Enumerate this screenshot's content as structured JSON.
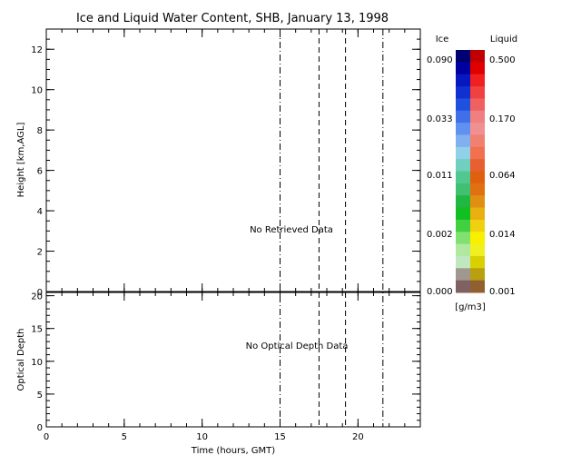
{
  "chart_data": {
    "type": "heatmap",
    "title": "Ice and Liquid Water Content, SHB, January 13, 1998",
    "xlabel": "Time (hours, GMT)",
    "xlim": [
      0,
      24
    ],
    "x_ticks": [
      0,
      5,
      10,
      15,
      20
    ],
    "x_minor_step": 1,
    "top_panel": {
      "ylabel": "Height [km,AGL]",
      "ylim": [
        0,
        13
      ],
      "y_ticks": [
        0,
        2,
        4,
        6,
        8,
        10,
        12
      ],
      "y_minor_step": 0.5,
      "message": "No Retrieved Data"
    },
    "bottom_panel": {
      "ylabel": "Optical Depth",
      "ylim": [
        0,
        20.5
      ],
      "y_ticks": [
        0,
        5,
        10,
        15,
        20
      ],
      "y_minor_step": 1,
      "message": "No Optical Depth Data"
    },
    "vertical_lines": [
      {
        "x": 15.0,
        "style": "dash-dot"
      },
      {
        "x": 17.5,
        "style": "dashed"
      },
      {
        "x": 19.2,
        "style": "dashed"
      },
      {
        "x": 21.6,
        "style": "dash-dot"
      }
    ],
    "colorbar": {
      "ice_label": "Ice",
      "liquid_label": "Liquid",
      "units": "[g/m3]",
      "ice_ticks": [
        "0.090",
        "0.033",
        "0.011",
        "0.002",
        "0.000"
      ],
      "liquid_ticks": [
        "0.500",
        "0.170",
        "0.064",
        "0.014",
        "0.001"
      ],
      "ice_colors": [
        "#000070",
        "#0000a0",
        "#0818c0",
        "#1030d0",
        "#2050e0",
        "#4070e8",
        "#6090f0",
        "#80b0f0",
        "#90d0e8",
        "#70d0c0",
        "#50c890",
        "#40c070",
        "#20b840",
        "#10c020",
        "#40d040",
        "#80e070",
        "#b0e8a0",
        "#c0e8c0",
        "#a09890",
        "#806060"
      ],
      "liquid_colors": [
        "#c00000",
        "#e00000",
        "#f02020",
        "#f04040",
        "#f06060",
        "#f08080",
        "#f09090",
        "#f08070",
        "#f07050",
        "#e86030",
        "#e06010",
        "#e07010",
        "#e09010",
        "#e8b010",
        "#f0d010",
        "#f8f000",
        "#f0f020",
        "#d8d000",
        "#b8a010",
        "#906030"
      ]
    }
  }
}
